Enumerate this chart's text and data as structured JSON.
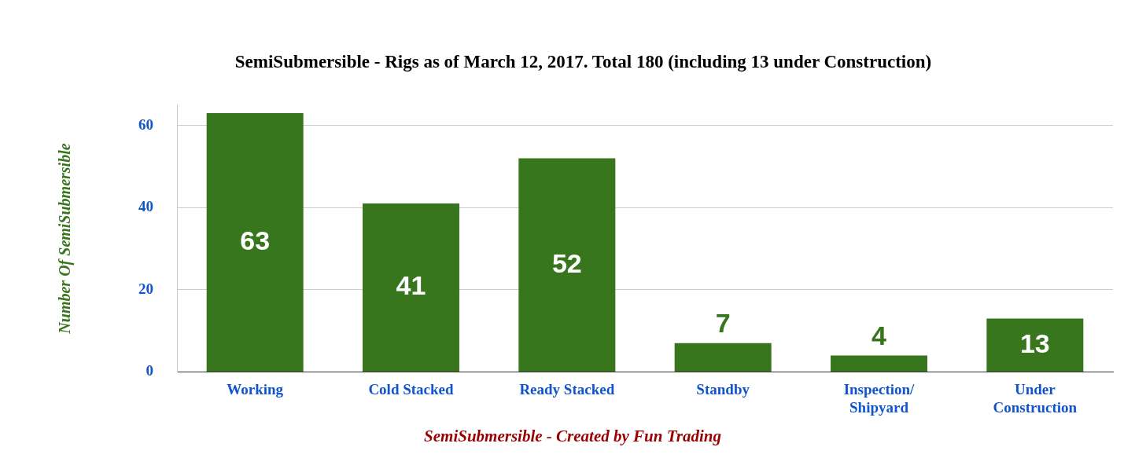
{
  "chart_data": {
    "type": "bar",
    "title": "SemiSubmersible - Rigs as of March 12, 2017. Total 180 (including 13 under Construction)",
    "ylabel": "Number Of SemiSubmersible",
    "categories": [
      "Working",
      "Cold Stacked",
      "Ready Stacked",
      "Standby",
      "Inspection/ Shipyard",
      "Under Construction"
    ],
    "values": [
      63,
      41,
      52,
      7,
      4,
      13
    ],
    "color": "#38761d",
    "ylim": [
      0,
      65
    ],
    "yticks": [
      0,
      20,
      40,
      60
    ],
    "grid": "y",
    "data_labels": true,
    "legend": false,
    "annotations": [
      "SemiSubmersible - Created by Fun Trading"
    ]
  }
}
